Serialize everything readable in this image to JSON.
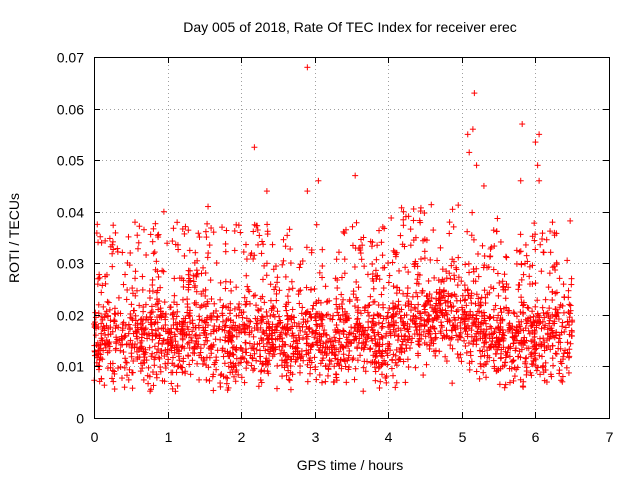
{
  "chart_data": {
    "type": "scatter",
    "title": "Day 005 of 2018, Rate Of TEC Index for receiver erec",
    "xlabel": "GPS time / hours",
    "ylabel": "ROTI / TECUs",
    "xlim": [
      0,
      7
    ],
    "ylim": [
      0,
      0.07
    ],
    "xticks": [
      "0",
      "1",
      "2",
      "3",
      "4",
      "5",
      "6",
      "7"
    ],
    "yticks": [
      "0",
      "0.01",
      "0.02",
      "0.03",
      "0.04",
      "0.05",
      "0.06",
      "0.07"
    ],
    "grid": true,
    "marker": "plus",
    "color": "#ff0000",
    "x_range_observed": [
      0,
      6.5
    ],
    "typical_band": [
      0.008,
      0.03
    ],
    "outliers": [
      {
        "x": 2.9,
        "y": 0.068
      },
      {
        "x": 5.17,
        "y": 0.063
      },
      {
        "x": 5.82,
        "y": 0.057
      },
      {
        "x": 5.15,
        "y": 0.056
      },
      {
        "x": 6.05,
        "y": 0.055
      },
      {
        "x": 5.08,
        "y": 0.055
      },
      {
        "x": 2.18,
        "y": 0.0525
      },
      {
        "x": 5.1,
        "y": 0.0515
      },
      {
        "x": 6.0,
        "y": 0.0535
      },
      {
        "x": 5.2,
        "y": 0.049
      },
      {
        "x": 6.03,
        "y": 0.049
      },
      {
        "x": 5.8,
        "y": 0.046
      },
      {
        "x": 3.55,
        "y": 0.047
      },
      {
        "x": 3.05,
        "y": 0.046
      },
      {
        "x": 6.05,
        "y": 0.046
      },
      {
        "x": 2.9,
        "y": 0.044
      },
      {
        "x": 2.35,
        "y": 0.044
      },
      {
        "x": 5.3,
        "y": 0.045
      },
      {
        "x": 1.55,
        "y": 0.041
      },
      {
        "x": 0.95,
        "y": 0.04
      }
    ]
  }
}
